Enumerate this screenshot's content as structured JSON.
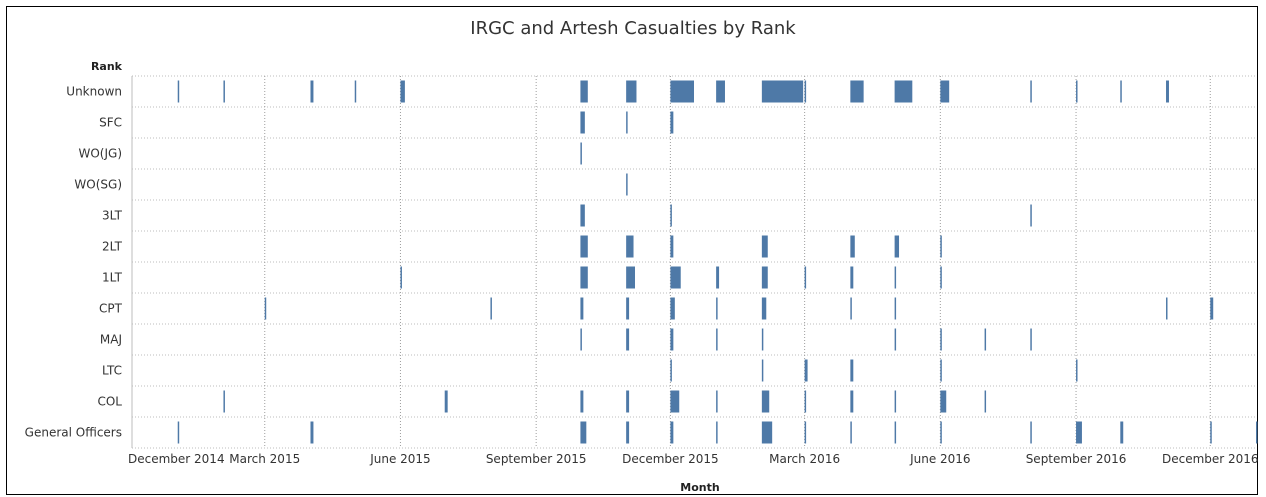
{
  "chart_data": {
    "type": "gantt",
    "title": "IRGC and Artesh Casualties by Rank",
    "ylabel": "Rank",
    "xlabel": "Month",
    "x_ticks": [
      "December 2014",
      "March 2015",
      "June 2015",
      "September 2015",
      "December 2015",
      "March 2016",
      "June 2016",
      "September 2016",
      "December 2016"
    ],
    "xlim": [
      "2014-12-01",
      "2017-01-01"
    ],
    "grid": true,
    "color": "#4e79a7",
    "ranks": [
      "Unknown",
      "SFC",
      "WO(JG)",
      "WO(SG)",
      "3LT",
      "2LT",
      "1LT",
      "CPT",
      "MAJ",
      "LTC",
      "COL",
      "General Officers"
    ],
    "events": {
      "Unknown": [
        [
          "2015-01-01",
          1
        ],
        [
          "2015-02-01",
          1
        ],
        [
          "2015-04-01",
          2
        ],
        [
          "2015-05-01",
          1
        ],
        [
          "2015-06-01",
          3
        ],
        [
          "2015-10-01",
          5
        ],
        [
          "2015-11-01",
          7
        ],
        [
          "2015-12-01",
          16
        ],
        [
          "2016-01-01",
          6
        ],
        [
          "2016-02-01",
          28
        ],
        [
          "2016-03-01",
          1
        ],
        [
          "2016-04-01",
          9
        ],
        [
          "2016-05-01",
          12
        ],
        [
          "2016-06-01",
          6
        ],
        [
          "2016-08-01",
          1
        ],
        [
          "2016-09-01",
          1
        ],
        [
          "2016-10-01",
          1
        ],
        [
          "2016-11-01",
          2
        ]
      ],
      "SFC": [
        [
          "2015-10-01",
          3
        ],
        [
          "2015-11-01",
          1
        ],
        [
          "2015-12-01",
          2
        ]
      ],
      "WO(JG)": [
        [
          "2015-10-01",
          1
        ]
      ],
      "WO(SG)": [
        [
          "2015-11-01",
          1
        ]
      ],
      "3LT": [
        [
          "2015-10-01",
          3
        ],
        [
          "2015-12-01",
          1
        ],
        [
          "2016-08-01",
          1
        ]
      ],
      "2LT": [
        [
          "2015-10-01",
          5
        ],
        [
          "2015-11-01",
          5
        ],
        [
          "2015-12-01",
          2
        ],
        [
          "2016-02-01",
          4
        ],
        [
          "2016-04-01",
          3
        ],
        [
          "2016-05-01",
          3
        ],
        [
          "2016-06-01",
          1
        ]
      ],
      "1LT": [
        [
          "2015-06-01",
          1
        ],
        [
          "2015-10-01",
          5
        ],
        [
          "2015-11-01",
          6
        ],
        [
          "2015-12-01",
          7
        ],
        [
          "2016-01-01",
          2
        ],
        [
          "2016-02-01",
          4
        ],
        [
          "2016-03-01",
          1
        ],
        [
          "2016-04-01",
          2
        ],
        [
          "2016-05-01",
          1
        ],
        [
          "2016-06-01",
          1
        ]
      ],
      "CPT": [
        [
          "2015-03-01",
          1
        ],
        [
          "2015-08-01",
          1
        ],
        [
          "2015-10-01",
          2
        ],
        [
          "2015-11-01",
          2
        ],
        [
          "2015-12-01",
          3
        ],
        [
          "2016-01-01",
          1
        ],
        [
          "2016-02-01",
          3
        ],
        [
          "2016-04-01",
          1
        ],
        [
          "2016-05-01",
          1
        ],
        [
          "2016-11-01",
          1
        ],
        [
          "2016-12-01",
          2
        ]
      ],
      "MAJ": [
        [
          "2015-10-01",
          1
        ],
        [
          "2015-11-01",
          2
        ],
        [
          "2015-12-01",
          2
        ],
        [
          "2016-01-01",
          1
        ],
        [
          "2016-02-01",
          1
        ],
        [
          "2016-05-01",
          1
        ],
        [
          "2016-06-01",
          1
        ],
        [
          "2016-07-01",
          1
        ],
        [
          "2016-08-01",
          1
        ]
      ],
      "LTC": [
        [
          "2015-12-01",
          1
        ],
        [
          "2016-02-01",
          1
        ],
        [
          "2016-03-01",
          2
        ],
        [
          "2016-04-01",
          2
        ],
        [
          "2016-06-01",
          1
        ],
        [
          "2016-09-01",
          1
        ]
      ],
      "COL": [
        [
          "2015-02-01",
          1
        ],
        [
          "2015-07-01",
          2
        ],
        [
          "2015-10-01",
          2
        ],
        [
          "2015-11-01",
          2
        ],
        [
          "2015-12-01",
          6
        ],
        [
          "2016-01-01",
          1
        ],
        [
          "2016-02-01",
          5
        ],
        [
          "2016-03-01",
          1
        ],
        [
          "2016-04-01",
          2
        ],
        [
          "2016-05-01",
          1
        ],
        [
          "2016-06-01",
          4
        ],
        [
          "2016-07-01",
          1
        ]
      ],
      "General Officers": [
        [
          "2015-01-01",
          1
        ],
        [
          "2015-04-01",
          2
        ],
        [
          "2015-10-01",
          4
        ],
        [
          "2015-11-01",
          2
        ],
        [
          "2015-12-01",
          2
        ],
        [
          "2016-01-01",
          1
        ],
        [
          "2016-02-01",
          7
        ],
        [
          "2016-03-01",
          1
        ],
        [
          "2016-04-01",
          1
        ],
        [
          "2016-05-01",
          1
        ],
        [
          "2016-06-01",
          1
        ],
        [
          "2016-08-01",
          1
        ],
        [
          "2016-09-01",
          4
        ],
        [
          "2016-10-01",
          2
        ],
        [
          "2016-12-01",
          1
        ],
        [
          "2017-01-01",
          1
        ]
      ]
    }
  }
}
